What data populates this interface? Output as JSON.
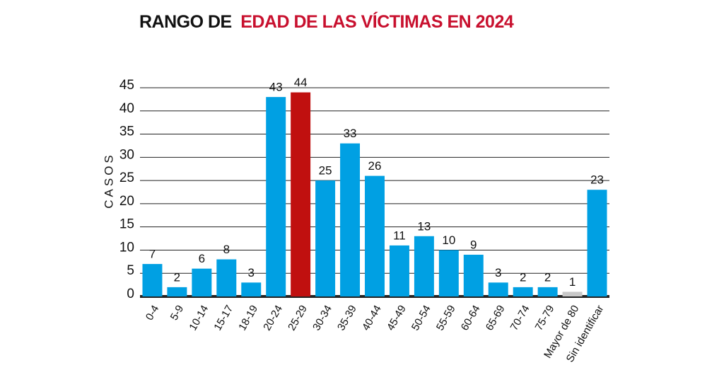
{
  "chart_data": {
    "type": "bar",
    "title": [
      "RANGO DE",
      "EDAD DE LAS VÍCTIMAS EN 2024"
    ],
    "title_colors": [
      "#111111",
      "#c8102e"
    ],
    "y_label": "CASOS",
    "categories": [
      "0-4",
      "5-9",
      "10-14",
      "15-17",
      "18-19",
      "20-24",
      "25-29",
      "30-34",
      "35-39",
      "40-44",
      "45-49",
      "50-54",
      "55-59",
      "60-64",
      "65-69",
      "70-74",
      "75-79",
      "Mayor de 80",
      "Sin identificar"
    ],
    "values": [
      7,
      2,
      6,
      8,
      3,
      43,
      44,
      25,
      33,
      26,
      11,
      13,
      10,
      9,
      3,
      2,
      2,
      1,
      23
    ],
    "colors": [
      "#00a0e3",
      "#00a0e3",
      "#00a0e3",
      "#00a0e3",
      "#00a0e3",
      "#00a0e3",
      "#c0100f",
      "#00a0e3",
      "#00a0e3",
      "#00a0e3",
      "#00a0e3",
      "#00a0e3",
      "#00a0e3",
      "#00a0e3",
      "#00a0e3",
      "#00a0e3",
      "#00a0e3",
      "#c8c8c8",
      "#00a0e3"
    ],
    "ylim": [
      0,
      45
    ],
    "yticks": [
      0,
      5,
      10,
      15,
      20,
      25,
      30,
      35,
      40,
      45
    ],
    "grid": true
  }
}
